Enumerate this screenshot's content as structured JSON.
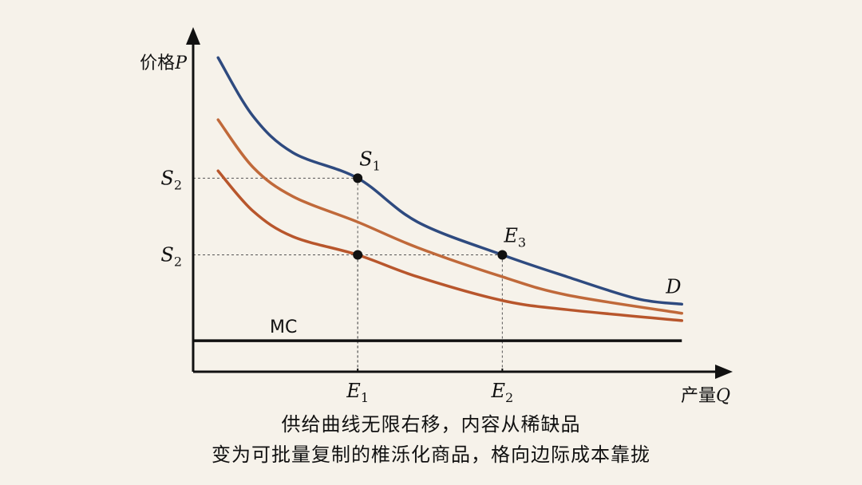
{
  "chart_data": {
    "type": "line",
    "axes": {
      "ylabel_text": "价格",
      "ylabel_var": "P",
      "xlabel_text": "产量",
      "xlabel_var": "Q"
    },
    "y_ticks": [
      {
        "base": "S",
        "sub": "2",
        "value": 5.3
      },
      {
        "base": "S",
        "sub": "2",
        "value": 3.2
      }
    ],
    "x_ticks": [
      {
        "base": "E",
        "sub": "1",
        "value": 3.3
      },
      {
        "base": "E",
        "sub": "2",
        "value": 6.2
      }
    ],
    "xlim": [
      0,
      10.5
    ],
    "ylim": [
      0,
      9.0
    ],
    "series": [
      {
        "name": "D",
        "color": "#2e4a7f",
        "x": [
          0.5,
          1.2,
          2.0,
          3.3,
          4.5,
          6.2,
          7.5,
          8.9,
          9.8
        ],
        "y": [
          8.6,
          7.0,
          6.0,
          5.3,
          4.1,
          3.2,
          2.6,
          2.0,
          1.85
        ]
      },
      {
        "name": "",
        "color": "#c0693a",
        "x": [
          0.5,
          1.2,
          2.0,
          3.3,
          4.5,
          6.2,
          7.5,
          9.8
        ],
        "y": [
          6.9,
          5.6,
          4.8,
          4.1,
          3.4,
          2.6,
          2.1,
          1.6
        ]
      },
      {
        "name": "",
        "color": "#b8562c",
        "x": [
          0.5,
          1.2,
          2.0,
          3.3,
          4.5,
          6.2,
          7.5,
          9.8
        ],
        "y": [
          5.5,
          4.4,
          3.7,
          3.2,
          2.6,
          1.95,
          1.7,
          1.4
        ]
      }
    ],
    "mc": {
      "label": "MC",
      "value": 0.85,
      "x_start": 0,
      "x_end": 9.8
    },
    "points": [
      {
        "label_base": "S",
        "label_sub": "1",
        "x": 3.3,
        "y": 5.3
      },
      {
        "label_base": "",
        "label_sub": "",
        "x": 3.3,
        "y": 3.2
      },
      {
        "label_base": "E",
        "label_sub": "3",
        "x": 6.2,
        "y": 3.2
      }
    ],
    "grid": false
  },
  "caption": {
    "line1": "供给曲线无限右移，内容从稀缺品",
    "line2": "变为可批量复制的椎泺化商品，格向边际成本靠拢"
  }
}
